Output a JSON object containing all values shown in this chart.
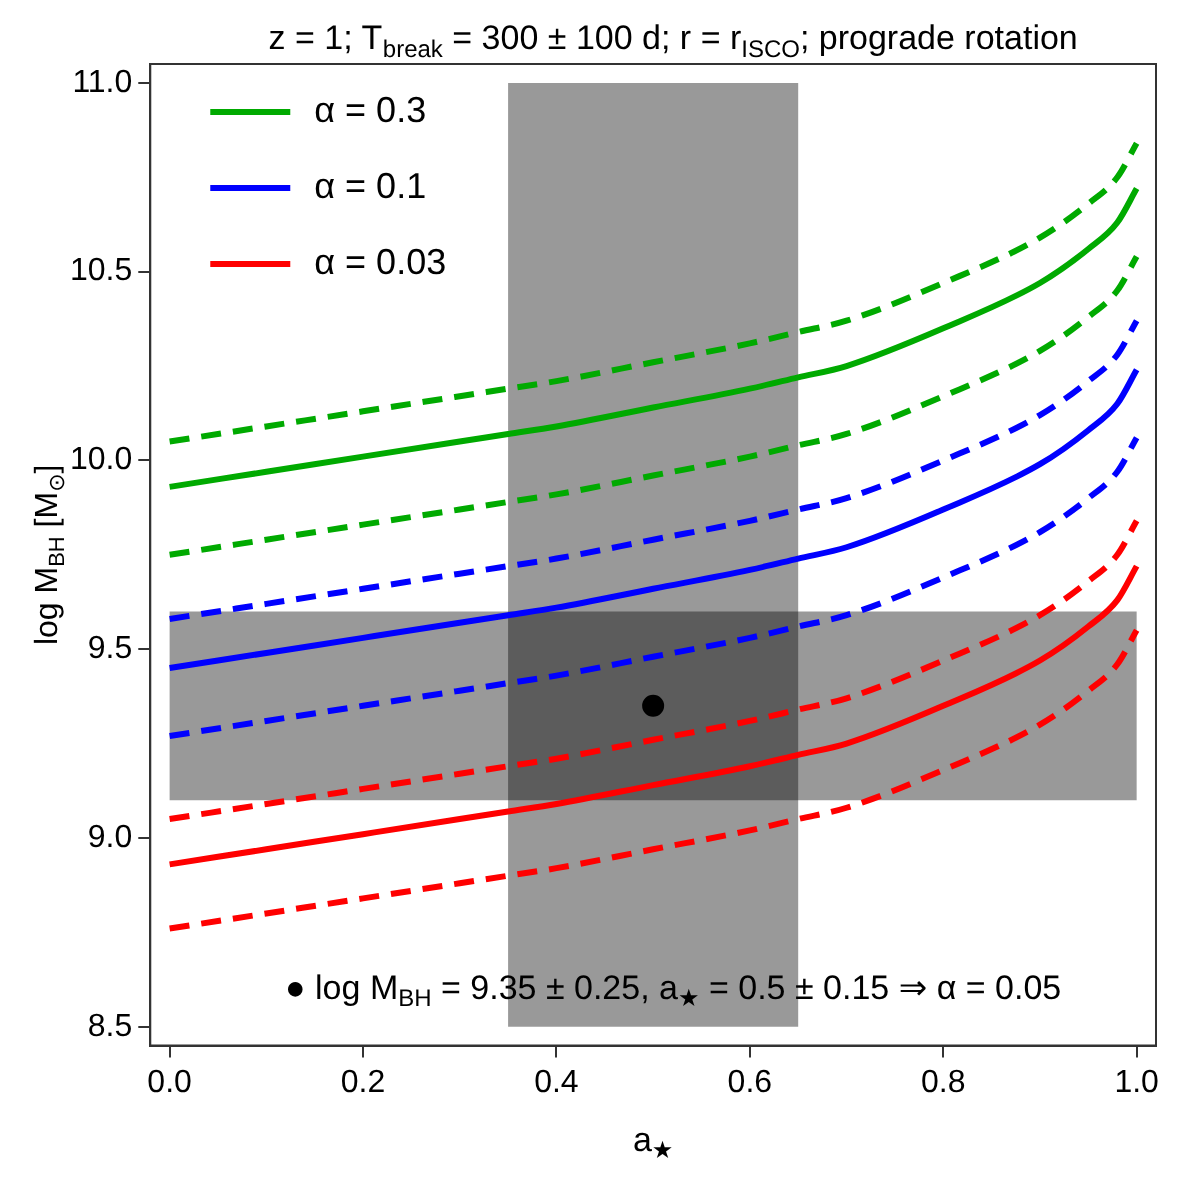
{
  "chart_data": {
    "type": "line",
    "title": "z = 1; T$_{break}$ = 300 ± 100 d; r = r$_{ISCO}$; prograde rotation",
    "xlabel": "a$_{★}$",
    "ylabel": "log M$_{BH}$ [M$_{⊙}$]",
    "x": [
      0,
      0.1,
      0.2,
      0.3,
      0.35,
      0.4,
      0.5,
      0.6,
      0.65,
      0.7,
      0.8,
      0.9,
      0.95,
      0.98,
      1.0
    ],
    "series": [
      {
        "color": "#00aa00",
        "line_style": "dashed",
        "values": [
          10.05,
          10.09,
          10.13,
          10.17,
          10.19,
          10.21,
          10.26,
          10.31,
          10.34,
          10.37,
          10.47,
          10.59,
          10.68,
          10.75,
          10.84
        ]
      },
      {
        "name": "α = 0.3",
        "color": "#00aa00",
        "line_style": "solid",
        "values": [
          9.93,
          9.97,
          10.01,
          10.05,
          10.07,
          10.09,
          10.14,
          10.19,
          10.22,
          10.25,
          10.35,
          10.47,
          10.56,
          10.63,
          10.72
        ]
      },
      {
        "color": "#00aa00",
        "line_style": "dashed",
        "values": [
          9.75,
          9.79,
          9.83,
          9.87,
          9.89,
          9.91,
          9.96,
          10.01,
          10.04,
          10.07,
          10.17,
          10.29,
          10.38,
          10.45,
          10.54
        ]
      },
      {
        "color": "#0000ff",
        "line_style": "dashed",
        "values": [
          9.58,
          9.62,
          9.66,
          9.7,
          9.72,
          9.74,
          9.79,
          9.84,
          9.87,
          9.9,
          10.0,
          10.12,
          10.21,
          10.28,
          10.37
        ]
      },
      {
        "name": "α = 0.1",
        "color": "#0000ff",
        "line_style": "solid",
        "values": [
          9.45,
          9.49,
          9.53,
          9.57,
          9.59,
          9.61,
          9.66,
          9.71,
          9.74,
          9.77,
          9.87,
          9.99,
          10.08,
          10.15,
          10.24
        ]
      },
      {
        "color": "#0000ff",
        "line_style": "dashed",
        "values": [
          9.27,
          9.31,
          9.35,
          9.39,
          9.41,
          9.43,
          9.48,
          9.53,
          9.56,
          9.59,
          9.69,
          9.81,
          9.9,
          9.97,
          10.06
        ]
      },
      {
        "color": "#ff0000",
        "line_style": "dashed",
        "values": [
          9.05,
          9.09,
          9.13,
          9.17,
          9.19,
          9.21,
          9.26,
          9.31,
          9.34,
          9.37,
          9.47,
          9.59,
          9.68,
          9.75,
          9.84
        ]
      },
      {
        "name": "α = 0.03",
        "color": "#ff0000",
        "line_style": "solid",
        "values": [
          8.93,
          8.97,
          9.01,
          9.05,
          9.07,
          9.09,
          9.14,
          9.19,
          9.22,
          9.25,
          9.35,
          9.47,
          9.56,
          9.63,
          9.72
        ]
      },
      {
        "color": "#ff0000",
        "line_style": "dashed",
        "values": [
          8.76,
          8.8,
          8.84,
          8.88,
          8.9,
          8.92,
          8.97,
          9.02,
          9.05,
          9.08,
          9.18,
          9.3,
          9.39,
          9.46,
          9.55
        ]
      },
      {
        "type": "scatter",
        "color": "#000000",
        "marker": "circle",
        "x": [
          0.5
        ],
        "values": [
          9.35
        ]
      }
    ],
    "bands": [
      {
        "axis": "x",
        "from": 0.35,
        "to": 0.65
      },
      {
        "axis": "y",
        "from": 9.1,
        "to": 9.6
      }
    ],
    "annotations": [
      "● log M$_{BH}$ = 9.35 ± 0.25, a$_{★}$ = 0.5 ± 0.15 ⇒ α = 0.05"
    ],
    "xlim": [
      -0.02,
      1.02
    ],
    "ylim": [
      8.45,
      11.05
    ],
    "xticks": [
      {
        "value": 0,
        "label": "0.0"
      },
      0.2,
      0.4,
      0.6,
      0.8,
      {
        "value": 1,
        "label": "1.0"
      }
    ],
    "yticks": [
      8.5,
      {
        "value": 9,
        "label": "9.0"
      },
      9.5,
      {
        "value": 10,
        "label": "10.0"
      },
      10.5,
      {
        "value": 11,
        "label": "11.0"
      }
    ],
    "grid": false,
    "legend": "top left"
  }
}
